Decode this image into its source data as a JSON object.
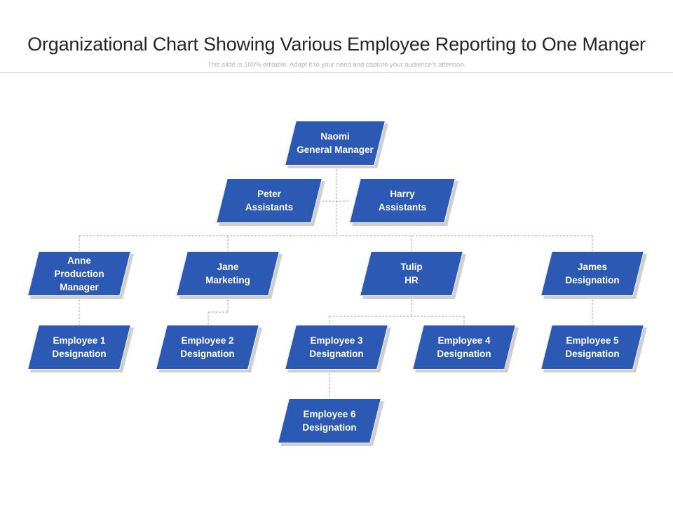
{
  "header": {
    "title": "Organizational Chart Showing Various Employee Reporting to One Manger",
    "subtitle": "This slide is 100% editable. Adapt it to your need and capture your audience's attention."
  },
  "colors": {
    "box": "#2b59b4",
    "box_text": "#ffffff",
    "connector": "#a6a6a6",
    "shadow": "#cfcfcf"
  },
  "nodes": {
    "naomi": {
      "line1": "Naomi",
      "line2": "General Manager"
    },
    "peter": {
      "line1": "Peter",
      "line2": "Assistants"
    },
    "harry": {
      "line1": "Harry",
      "line2": "Assistants"
    },
    "anne": {
      "line1": "Anne",
      "line2": "Production",
      "line3": "Manager"
    },
    "jane": {
      "line1": "Jane",
      "line2": "Marketing"
    },
    "tulip": {
      "line1": "Tulip",
      "line2": "HR"
    },
    "james": {
      "line1": "James",
      "line2": "Designation"
    },
    "emp1": {
      "line1": "Employee 1",
      "line2": "Designation"
    },
    "emp2": {
      "line1": "Employee 2",
      "line2": "Designation"
    },
    "emp3": {
      "line1": "Employee 3",
      "line2": "Designation"
    },
    "emp4": {
      "line1": "Employee 4",
      "line2": "Designation"
    },
    "emp5": {
      "line1": "Employee 5",
      "line2": "Designation"
    },
    "emp6": {
      "line1": "Employee 6",
      "line2": "Designation"
    }
  }
}
